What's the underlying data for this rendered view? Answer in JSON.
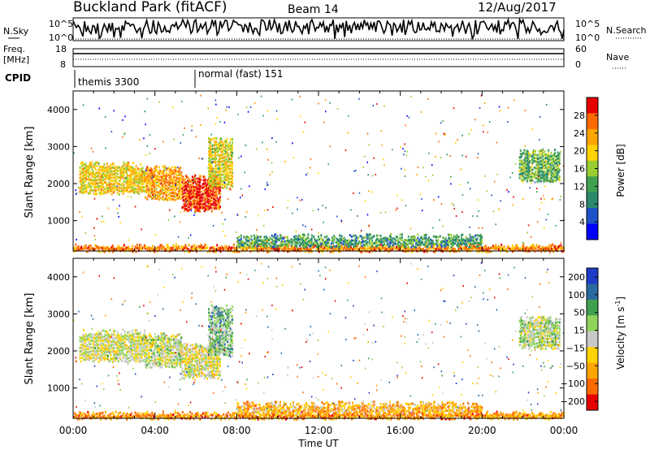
{
  "header": {
    "station": "Buckland Park (fitACF)",
    "beam": "Beam 14",
    "date": "12/Aug/2017"
  },
  "side_labels": {
    "nsky": "N.Sky",
    "nsearch": "N.Search",
    "freq": "Freq.",
    "freq_unit": "[MHz]",
    "nave": "Nave",
    "cpid": "CPID"
  },
  "noise_panel": {
    "left_ticks": [
      "10^5",
      "10^0"
    ],
    "right_ticks": [
      "10^5",
      "10^0"
    ]
  },
  "freq_panel": {
    "left_ticks": [
      "18",
      "8"
    ],
    "right_ticks": [
      "60",
      "0"
    ]
  },
  "cpid_panel": {
    "segments": [
      {
        "label": "themis 3300",
        "start_hour": 0
      },
      {
        "label": "normal (fast) 151",
        "start_hour": 6.1
      }
    ]
  },
  "chart_data": [
    {
      "type": "heatmap",
      "panel": "power",
      "ylabel": "Slant Range [km]",
      "xlabel": "",
      "x_tick_labels": [
        "00:00",
        "04:00",
        "08:00",
        "12:00",
        "16:00",
        "20:00",
        "00:00"
      ],
      "xlim_hours": [
        0,
        24
      ],
      "ylim": [
        180,
        4500
      ],
      "y_ticks": [
        1000,
        2000,
        3000,
        4000
      ],
      "colorbar": {
        "label": "Power [dB]",
        "ticks": [
          "4",
          "8",
          "12",
          "16",
          "20",
          "24",
          "28"
        ],
        "range": [
          0,
          30
        ],
        "colors": [
          "#0000ff",
          "#1e50c8",
          "#2a8a6e",
          "#3fa050",
          "#9acd32",
          "#ffd200",
          "#ffa500",
          "#ff6a00",
          "#e60000"
        ]
      },
      "regions": [
        {
          "t0": 0.3,
          "t1": 3.5,
          "r0": 1750,
          "r1": 2550,
          "level": 0.62
        },
        {
          "t0": 3.5,
          "t1": 5.3,
          "r0": 1600,
          "r1": 2450,
          "level": 0.72
        },
        {
          "t0": 5.3,
          "t1": 7.2,
          "r0": 1300,
          "r1": 2200,
          "level": 0.9
        },
        {
          "t0": 6.6,
          "t1": 7.8,
          "r0": 1900,
          "r1": 3200,
          "level": 0.6
        },
        {
          "t0": 21.8,
          "t1": 23.8,
          "r0": 2100,
          "r1": 2900,
          "level": 0.42
        },
        {
          "t0": 0.0,
          "t1": 24.0,
          "r0": 200,
          "r1": 330,
          "level": 0.78
        },
        {
          "t0": 8.0,
          "t1": 20.0,
          "r0": 330,
          "r1": 600,
          "level": 0.35
        }
      ]
    },
    {
      "type": "heatmap",
      "panel": "velocity",
      "ylabel": "Slant Range [km]",
      "xlabel": "Time UT",
      "x_tick_labels": [
        "00:00",
        "04:00",
        "08:00",
        "12:00",
        "16:00",
        "20:00",
        "00:00"
      ],
      "xlim_hours": [
        0,
        24
      ],
      "ylim": [
        180,
        4500
      ],
      "y_ticks": [
        1000,
        2000,
        3000,
        4000
      ],
      "colorbar": {
        "label": "Velocity [m s^-1]",
        "ticks": [
          "200",
          "100",
          "50",
          "15",
          "-15",
          "-50",
          "-100",
          "-200"
        ],
        "range": [
          -250,
          250
        ],
        "colors": [
          "#e60000",
          "#ff6a00",
          "#ffa500",
          "#ffd200",
          "#c8c8c8",
          "#8fd35a",
          "#3fa050",
          "#2a6aa0",
          "#1e3cc8"
        ]
      },
      "regions": [
        {
          "t0": 0.3,
          "t1": 3.5,
          "r0": 1750,
          "r1": 2550,
          "level": 0.0
        },
        {
          "t0": 3.5,
          "t1": 5.3,
          "r0": 1600,
          "r1": 2450,
          "level": 0.05
        },
        {
          "t0": 5.3,
          "t1": 7.2,
          "r0": 1300,
          "r1": 2200,
          "level": -0.05
        },
        {
          "t0": 6.6,
          "t1": 7.8,
          "r0": 1900,
          "r1": 3200,
          "level": 0.3
        },
        {
          "t0": 21.8,
          "t1": 23.8,
          "r0": 2100,
          "r1": 2900,
          "level": 0.1
        },
        {
          "t0": 0.0,
          "t1": 24.0,
          "r0": 200,
          "r1": 330,
          "level": -0.5
        },
        {
          "t0": 8.0,
          "t1": 20.0,
          "r0": 330,
          "r1": 600,
          "level": -0.35
        }
      ]
    }
  ]
}
